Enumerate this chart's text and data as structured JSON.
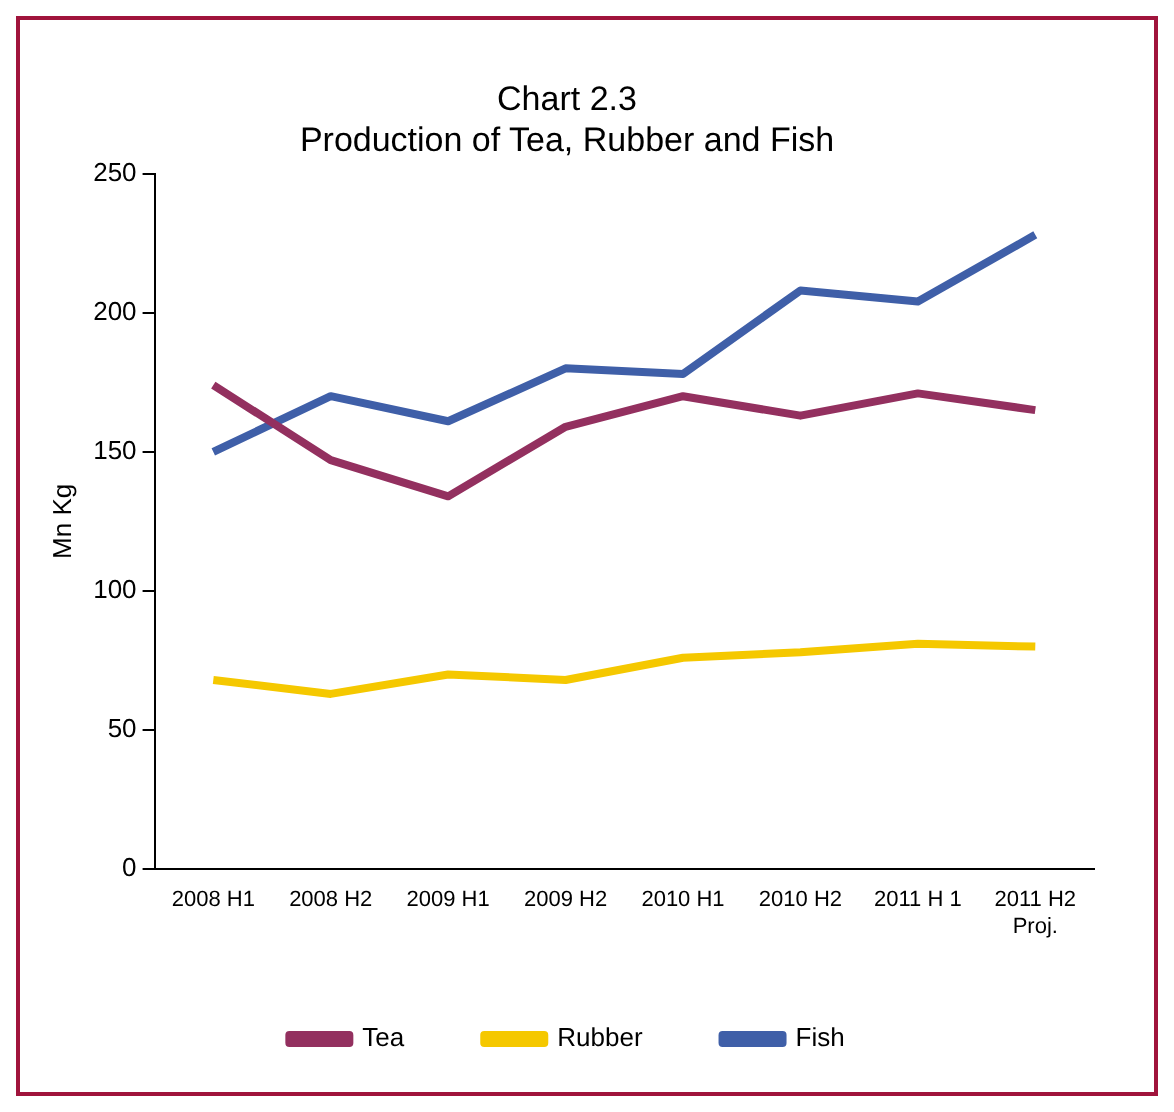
{
  "chart_data": {
    "type": "line",
    "title": "Chart 2.3",
    "subtitle": "Production of Tea, Rubber and Fish",
    "ylabel": "Mn Kg",
    "categories": [
      "2008 H1",
      "2008 H2",
      "2009 H1",
      "2009 H2",
      "2010 H1",
      "2010 H2",
      "2011 H 1",
      "2011 H2\nProj."
    ],
    "series": [
      {
        "name": "Tea",
        "color": "#93305f",
        "values": [
          174,
          147,
          134,
          159,
          170,
          163,
          171,
          165
        ]
      },
      {
        "name": "Rubber",
        "color": "#f5c800",
        "values": [
          68,
          63,
          70,
          68,
          76,
          78,
          81,
          80
        ]
      },
      {
        "name": "Fish",
        "color": "#3f5fa8",
        "values": [
          150,
          170,
          161,
          180,
          178,
          208,
          204,
          228
        ]
      }
    ],
    "ylim": [
      0,
      250
    ],
    "yticks": [
      0,
      50,
      100,
      150,
      200,
      250
    ],
    "grid": false,
    "legend": "bottom",
    "marker": "none",
    "line_style": "solid"
  }
}
